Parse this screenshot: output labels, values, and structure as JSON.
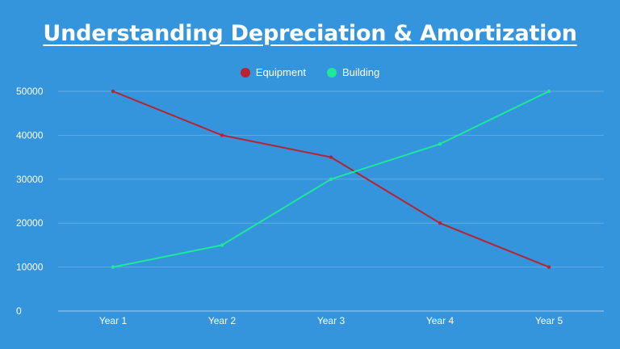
{
  "title": "Understanding Depreciation & Amortization",
  "chart_data": {
    "type": "line",
    "categories": [
      "Year 1",
      "Year 2",
      "Year 3",
      "Year 4",
      "Year 5"
    ],
    "series": [
      {
        "name": "Equipment",
        "values": [
          50000,
          40000,
          35000,
          20000,
          10000
        ],
        "color": "#b8232f"
      },
      {
        "name": "Building",
        "values": [
          10000,
          15000,
          30000,
          38000,
          50000
        ],
        "color": "#1ee89a"
      }
    ],
    "yticks": [
      0,
      10000,
      20000,
      30000,
      40000,
      50000
    ],
    "ylim": [
      0,
      50000
    ],
    "grid": true,
    "legend": "top-center"
  }
}
